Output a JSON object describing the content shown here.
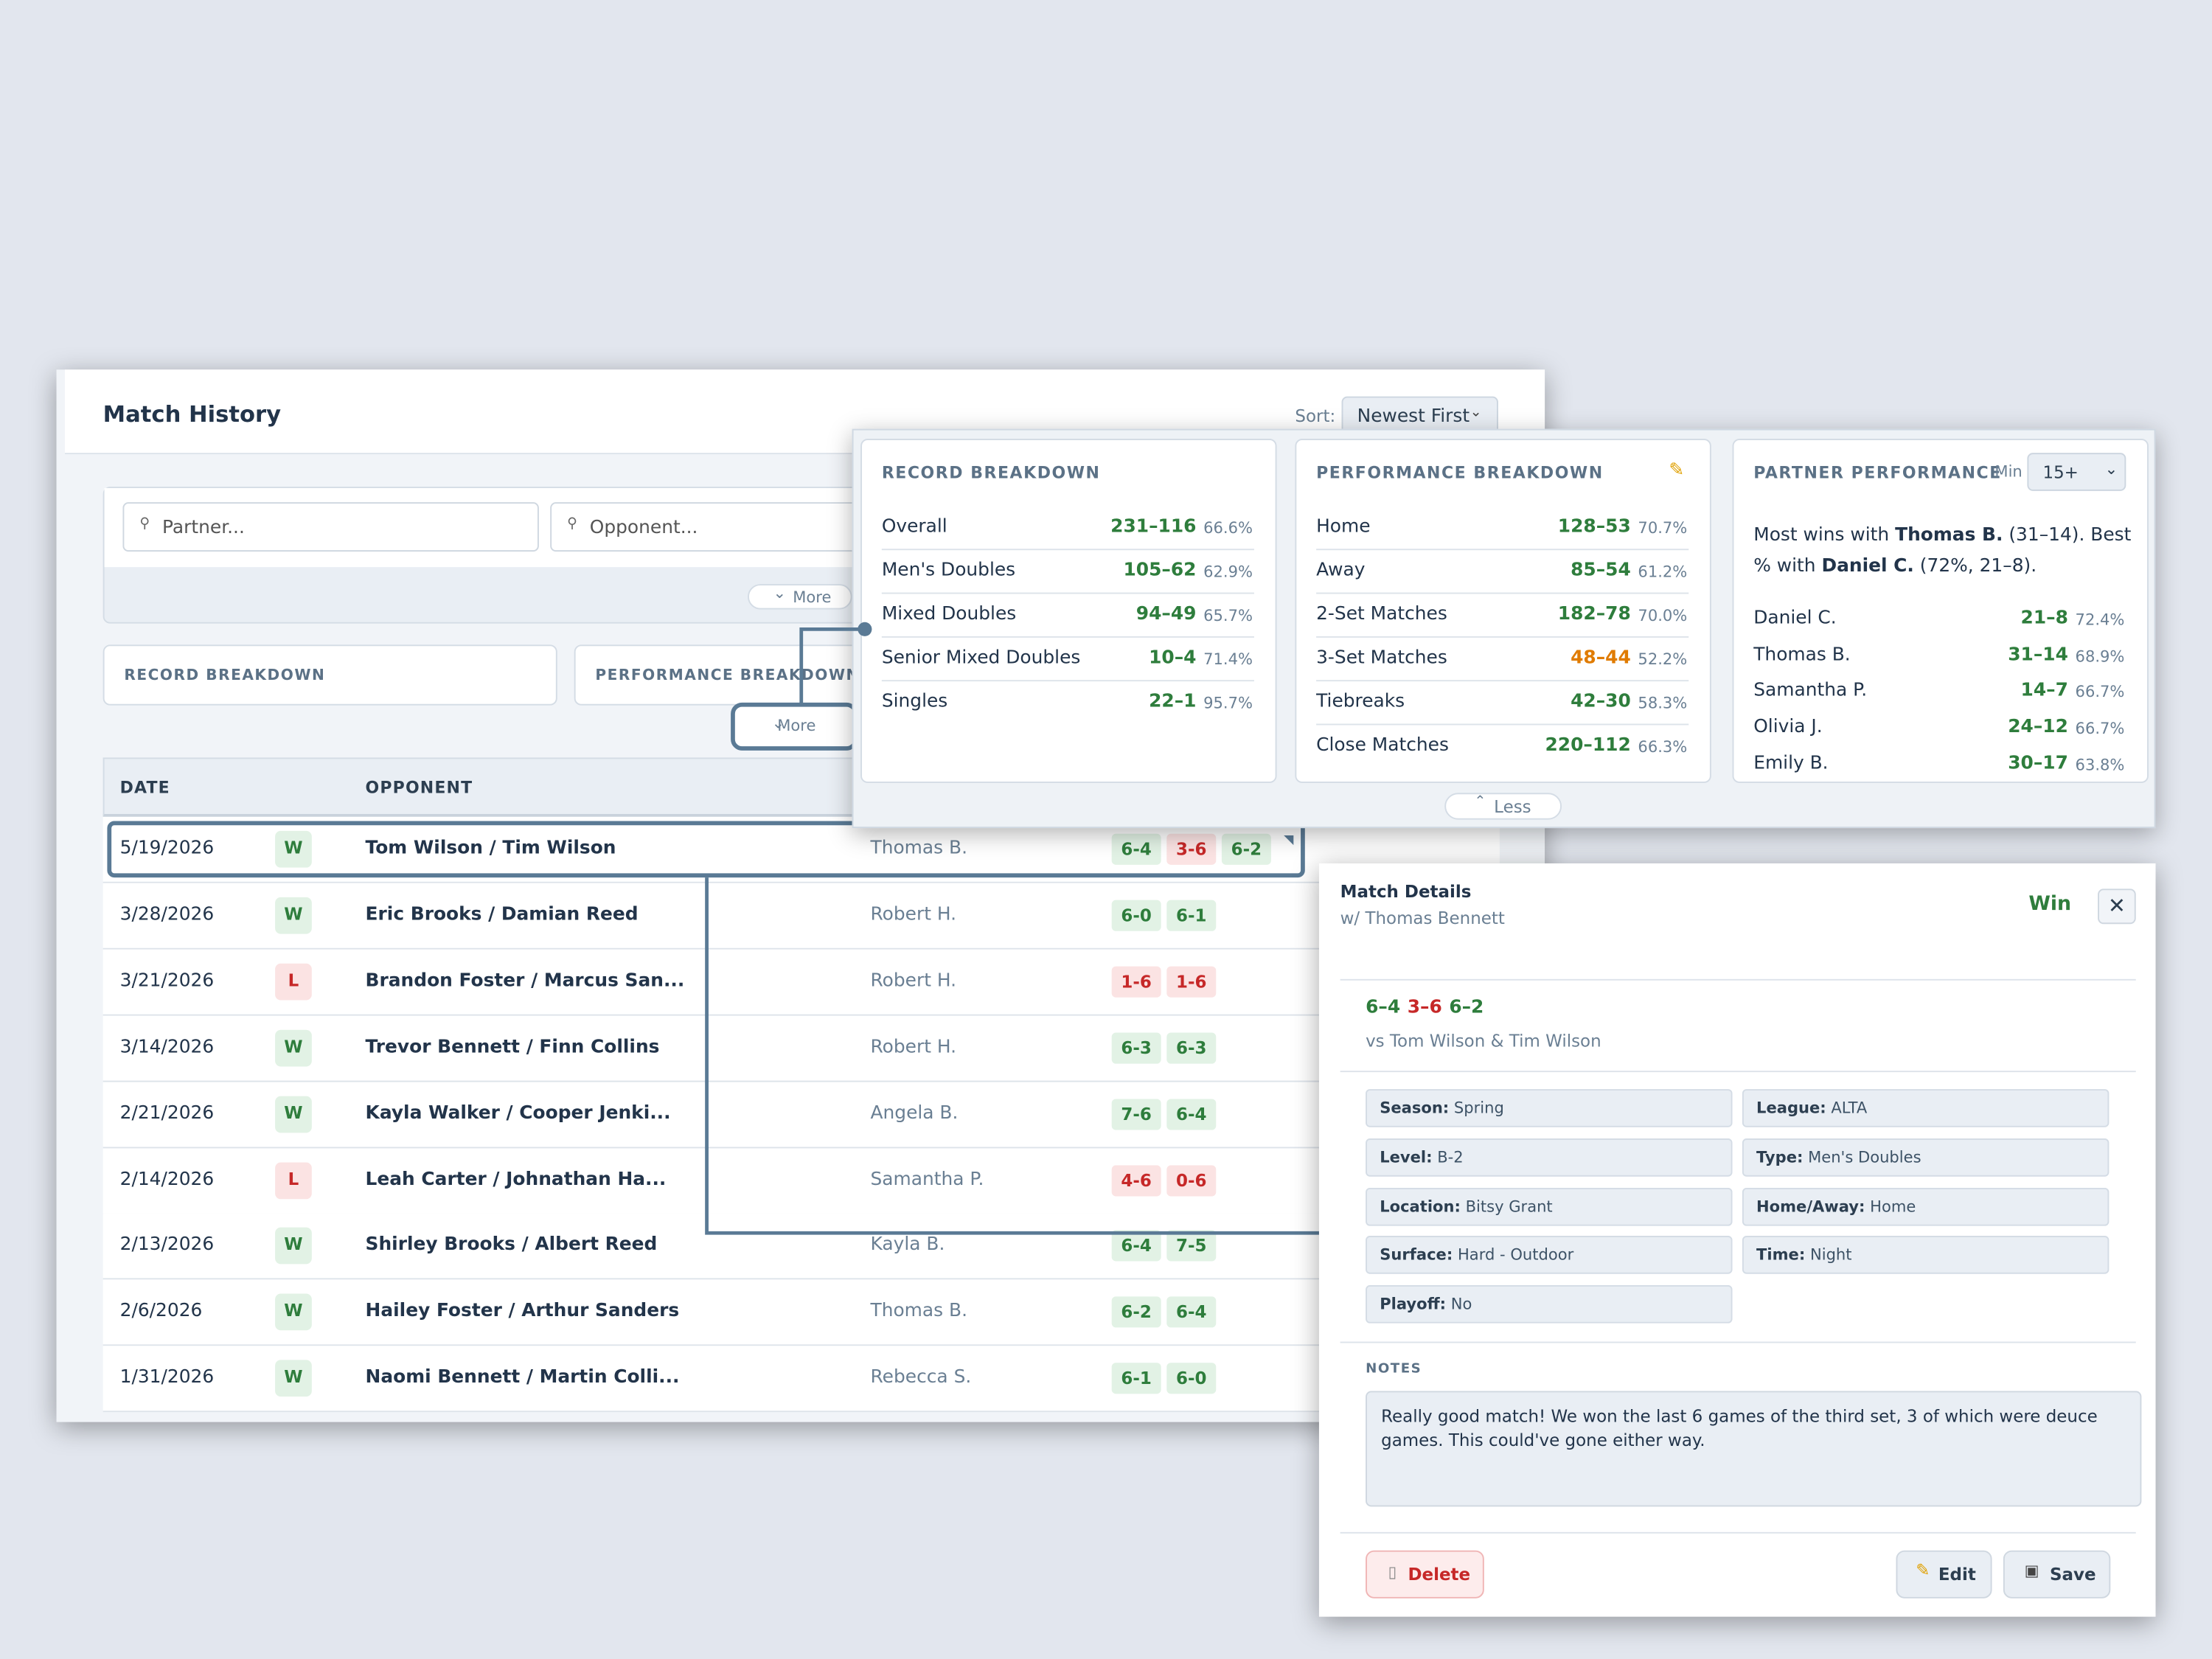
{
  "header": {
    "title": "Match History",
    "sort_label": "Sort:",
    "sort_value": "Newest First"
  },
  "filters": {
    "partner_placeholder": "Partner...",
    "opponent_placeholder": "Opponent...",
    "more": "More"
  },
  "collapsed": {
    "cards": [
      "RECORD BREAKDOWN",
      "PERFORMANCE BREAKDOWN"
    ],
    "more": "More"
  },
  "table": {
    "headers": [
      "DATE",
      "OPPONENT"
    ],
    "rows": [
      [
        "5/19/2026",
        "W",
        "Tom Wilson / Tim Wilson",
        "Thomas B.",
        [
          "6-4",
          "3-6",
          "6-2"
        ]
      ],
      [
        "3/28/2026",
        "W",
        "Eric Brooks / Damian Reed",
        "Robert H.",
        [
          "6-0",
          "6-1"
        ]
      ],
      [
        "3/21/2026",
        "L",
        "Brandon Foster / Marcus San...",
        "Robert H.",
        [
          "1-6",
          "1-6"
        ]
      ],
      [
        "3/14/2026",
        "W",
        "Trevor Bennett / Finn Collins",
        "Robert H.",
        [
          "6-3",
          "6-3"
        ]
      ],
      [
        "2/21/2026",
        "W",
        "Kayla Walker / Cooper Jenki...",
        "Angela B.",
        [
          "7-6",
          "6-4"
        ]
      ],
      [
        "2/14/2026",
        "L",
        "Leah Carter / Johnathan Ha...",
        "Samantha P.",
        [
          "4-6",
          "0-6"
        ]
      ],
      [
        "2/13/2026",
        "W",
        "Shirley Brooks / Albert Reed",
        "Kayla B.",
        [
          "6-4",
          "7-5"
        ]
      ],
      [
        "2/6/2026",
        "W",
        "Hailey Foster / Arthur Sanders",
        "Thomas B.",
        [
          "6-2",
          "6-4"
        ]
      ],
      [
        "1/31/2026",
        "W",
        "Naomi Bennett / Martin Colli...",
        "Rebecca S.",
        [
          "6-1",
          "6-0"
        ]
      ]
    ]
  },
  "record_breakdown": {
    "title": "RECORD BREAKDOWN",
    "rows": [
      [
        "Overall",
        "231–116",
        "66.6%"
      ],
      [
        "Men's Doubles",
        "105–62",
        "62.9%"
      ],
      [
        "Mixed Doubles",
        "94–49",
        "65.7%"
      ],
      [
        "Senior Mixed Doubles",
        "10–4",
        "71.4%"
      ],
      [
        "Singles",
        "22–1",
        "95.7%"
      ]
    ]
  },
  "performance_breakdown": {
    "title": "PERFORMANCE BREAKDOWN",
    "rows": [
      [
        "Home",
        "128–53",
        "70.7%"
      ],
      [
        "Away",
        "85–54",
        "61.2%"
      ],
      [
        "2-Set Matches",
        "182–78",
        "70.0%"
      ],
      [
        "3-Set Matches",
        "48–44",
        "52.2%"
      ],
      [
        "Tiebreaks",
        "42–30",
        "58.3%"
      ],
      [
        "Close Matches",
        "220–112",
        "66.3%"
      ]
    ]
  },
  "partner_performance": {
    "title": "PARTNER PERFORMANCE",
    "min_label": "Min",
    "min_value": "15+",
    "summary": [
      "Most wins with ",
      "Thomas B.",
      " (31–14). Best % with ",
      "Daniel C.",
      " (72%, 21–8)."
    ],
    "rows": [
      [
        "Daniel C.",
        "21–8",
        "72.4%"
      ],
      [
        "Thomas B.",
        "31–14",
        "68.9%"
      ],
      [
        "Samantha P.",
        "14–7",
        "66.7%"
      ],
      [
        "Olivia J.",
        "24–12",
        "66.7%"
      ],
      [
        "Emily B.",
        "30–17",
        "63.8%"
      ]
    ]
  },
  "less": "Less",
  "match_details": {
    "title": "Match Details",
    "partner": "w/ Thomas Bennett",
    "result": "Win",
    "scores": [
      "6–4",
      "3–6",
      "6–2"
    ],
    "vs": "vs Tom Wilson & Tim Wilson",
    "fields": [
      [
        "Season:",
        "Spring"
      ],
      [
        "League:",
        "ALTA"
      ],
      [
        "Level:",
        "B-2"
      ],
      [
        "Type:",
        "Men's Doubles"
      ],
      [
        "Location:",
        "Bitsy Grant"
      ],
      [
        "Home/Away:",
        "Home"
      ],
      [
        "Surface:",
        "Hard - Outdoor"
      ],
      [
        "Time:",
        "Night"
      ],
      [
        "Playoff:",
        "No"
      ]
    ],
    "notes_label": "NOTES",
    "notes": "Really good match! We won the last 6 games of the third set, 3 of which were deuce games. This could've gone either way.",
    "delete": "Delete",
    "edit": "Edit",
    "save": "Save"
  }
}
